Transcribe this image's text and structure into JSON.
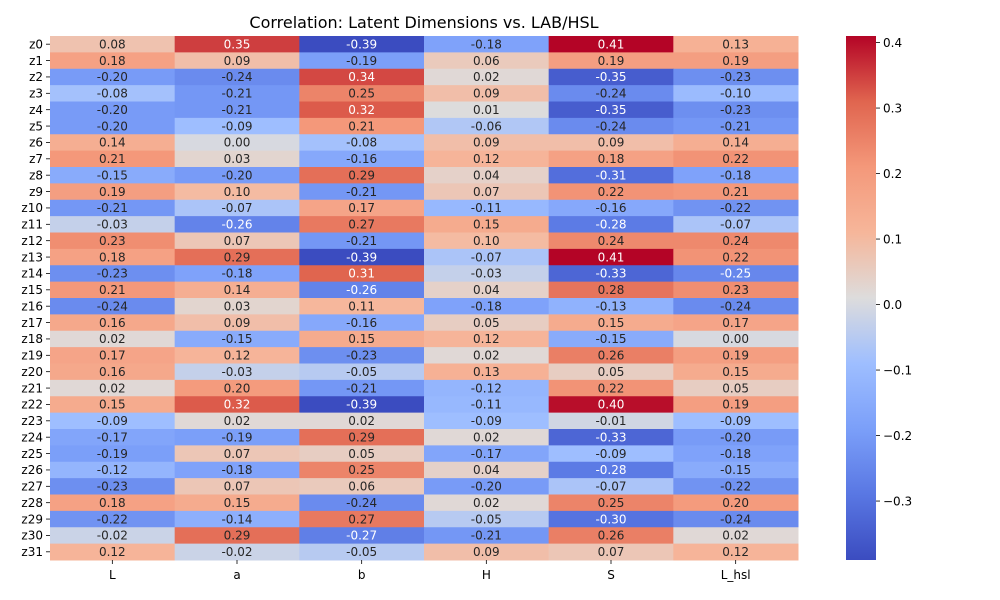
{
  "chart_data": {
    "type": "heatmap",
    "title": "Correlation: Latent Dimensions vs. LAB/HSL",
    "xlabel": "",
    "ylabel": "",
    "columns": [
      "L",
      "a",
      "b",
      "H",
      "S",
      "L_hsl"
    ],
    "rows": [
      "z0",
      "z1",
      "z2",
      "z3",
      "z4",
      "z5",
      "z6",
      "z7",
      "z8",
      "z9",
      "z10",
      "z11",
      "z12",
      "z13",
      "z14",
      "z15",
      "z16",
      "z17",
      "z18",
      "z19",
      "z20",
      "z21",
      "z22",
      "z23",
      "z24",
      "z25",
      "z26",
      "z27",
      "z28",
      "z29",
      "z30",
      "z31"
    ],
    "values": [
      [
        0.08,
        0.35,
        -0.39,
        -0.18,
        0.41,
        0.13
      ],
      [
        0.18,
        0.09,
        -0.19,
        0.06,
        0.19,
        0.19
      ],
      [
        -0.2,
        -0.24,
        0.34,
        0.02,
        -0.35,
        -0.23
      ],
      [
        -0.08,
        -0.21,
        0.25,
        0.09,
        -0.24,
        -0.1
      ],
      [
        -0.2,
        -0.21,
        0.32,
        0.01,
        -0.35,
        -0.23
      ],
      [
        -0.2,
        -0.09,
        0.21,
        -0.06,
        -0.24,
        -0.21
      ],
      [
        0.14,
        0.0,
        -0.08,
        0.09,
        0.09,
        0.14
      ],
      [
        0.21,
        0.03,
        -0.16,
        0.12,
        0.18,
        0.22
      ],
      [
        -0.15,
        -0.2,
        0.29,
        0.04,
        -0.31,
        -0.18
      ],
      [
        0.19,
        0.1,
        -0.21,
        0.07,
        0.22,
        0.21
      ],
      [
        -0.21,
        -0.07,
        0.17,
        -0.11,
        -0.16,
        -0.22
      ],
      [
        -0.03,
        -0.26,
        0.27,
        0.15,
        -0.28,
        -0.07
      ],
      [
        0.23,
        0.07,
        -0.21,
        0.1,
        0.24,
        0.24
      ],
      [
        0.18,
        0.29,
        -0.39,
        -0.07,
        0.41,
        0.22
      ],
      [
        -0.23,
        -0.18,
        0.31,
        -0.03,
        -0.33,
        -0.25
      ],
      [
        0.21,
        0.14,
        -0.26,
        0.04,
        0.28,
        0.23
      ],
      [
        -0.24,
        0.03,
        0.11,
        -0.18,
        -0.13,
        -0.24
      ],
      [
        0.16,
        0.09,
        -0.16,
        0.05,
        0.15,
        0.17
      ],
      [
        0.02,
        -0.15,
        0.15,
        0.12,
        -0.15,
        -0.0
      ],
      [
        0.17,
        0.12,
        -0.23,
        0.02,
        0.26,
        0.19
      ],
      [
        0.16,
        -0.03,
        -0.05,
        0.13,
        0.05,
        0.15
      ],
      [
        0.02,
        0.2,
        -0.21,
        -0.12,
        0.22,
        0.05
      ],
      [
        0.15,
        0.32,
        -0.39,
        -0.11,
        0.4,
        0.19
      ],
      [
        -0.09,
        0.02,
        0.02,
        -0.09,
        -0.01,
        -0.09
      ],
      [
        -0.17,
        -0.19,
        0.29,
        0.02,
        -0.33,
        -0.2
      ],
      [
        -0.19,
        0.07,
        0.05,
        -0.17,
        -0.09,
        -0.18
      ],
      [
        -0.12,
        -0.18,
        0.25,
        0.04,
        -0.28,
        -0.15
      ],
      [
        -0.23,
        0.07,
        0.06,
        -0.2,
        -0.07,
        -0.22
      ],
      [
        0.18,
        0.15,
        -0.24,
        0.02,
        0.25,
        0.2
      ],
      [
        -0.22,
        -0.14,
        0.27,
        -0.05,
        -0.3,
        -0.24
      ],
      [
        -0.02,
        0.29,
        -0.27,
        -0.21,
        0.26,
        0.02
      ],
      [
        0.12,
        -0.02,
        -0.05,
        0.09,
        0.07,
        0.12
      ]
    ],
    "vmin": -0.39,
    "vmax": 0.41,
    "colormap": "coolwarm",
    "colorbar_ticks": [
      0.4,
      0.3,
      0.2,
      0.1,
      0.0,
      -0.1,
      -0.2,
      -0.3
    ],
    "colorbar_tick_labels": [
      "0.4",
      "0.3",
      "0.2",
      "0.1",
      "0.0",
      "−0.1",
      "−0.2",
      "−0.3"
    ]
  }
}
